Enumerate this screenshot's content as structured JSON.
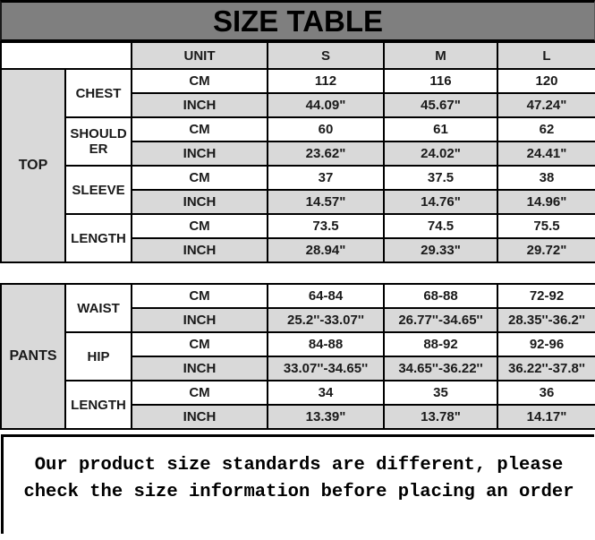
{
  "title": "SIZE TABLE",
  "header": {
    "unit": "UNIT",
    "sizes": [
      "S",
      "M",
      "L"
    ]
  },
  "unit_labels": {
    "cm": "CM",
    "inch": "INCH"
  },
  "sections": [
    {
      "category": "TOP",
      "rows": [
        {
          "measure": "CHEST",
          "cm": [
            "112",
            "116",
            "120"
          ],
          "inch": [
            "44.09\"",
            "45.67\"",
            "47.24\""
          ]
        },
        {
          "measure": "SHOULDER",
          "cm": [
            "60",
            "61",
            "62"
          ],
          "inch": [
            "23.62\"",
            "24.02\"",
            "24.41\""
          ]
        },
        {
          "measure": "SLEEVE",
          "cm": [
            "37",
            "37.5",
            "38"
          ],
          "inch": [
            "14.57\"",
            "14.76\"",
            "14.96\""
          ]
        },
        {
          "measure": "LENGTH",
          "cm": [
            "73.5",
            "74.5",
            "75.5"
          ],
          "inch": [
            "28.94\"",
            "29.33\"",
            "29.72\""
          ]
        }
      ]
    },
    {
      "category": "PANTS",
      "rows": [
        {
          "measure": "WAIST",
          "cm": [
            "64-84",
            "68-88",
            "72-92"
          ],
          "inch": [
            "25.2''-33.07''",
            "26.77''-34.65''",
            "28.35''-36.2''"
          ]
        },
        {
          "measure": "HIP",
          "cm": [
            "84-88",
            "88-92",
            "92-96"
          ],
          "inch": [
            "33.07''-34.65''",
            "34.65''-36.22''",
            "36.22''-37.8''"
          ]
        },
        {
          "measure": "LENGTH",
          "cm": [
            "34",
            "35",
            "36"
          ],
          "inch": [
            "13.39\"",
            "13.78\"",
            "14.17\""
          ]
        }
      ]
    }
  ],
  "note": "Our product size standards are different, please check the size information before placing an order",
  "colors": {
    "title_bg": "#7f7f7f",
    "shaded_cell_bg": "#d9d9d9",
    "border": "#000000",
    "text": "#1a1a1a"
  }
}
